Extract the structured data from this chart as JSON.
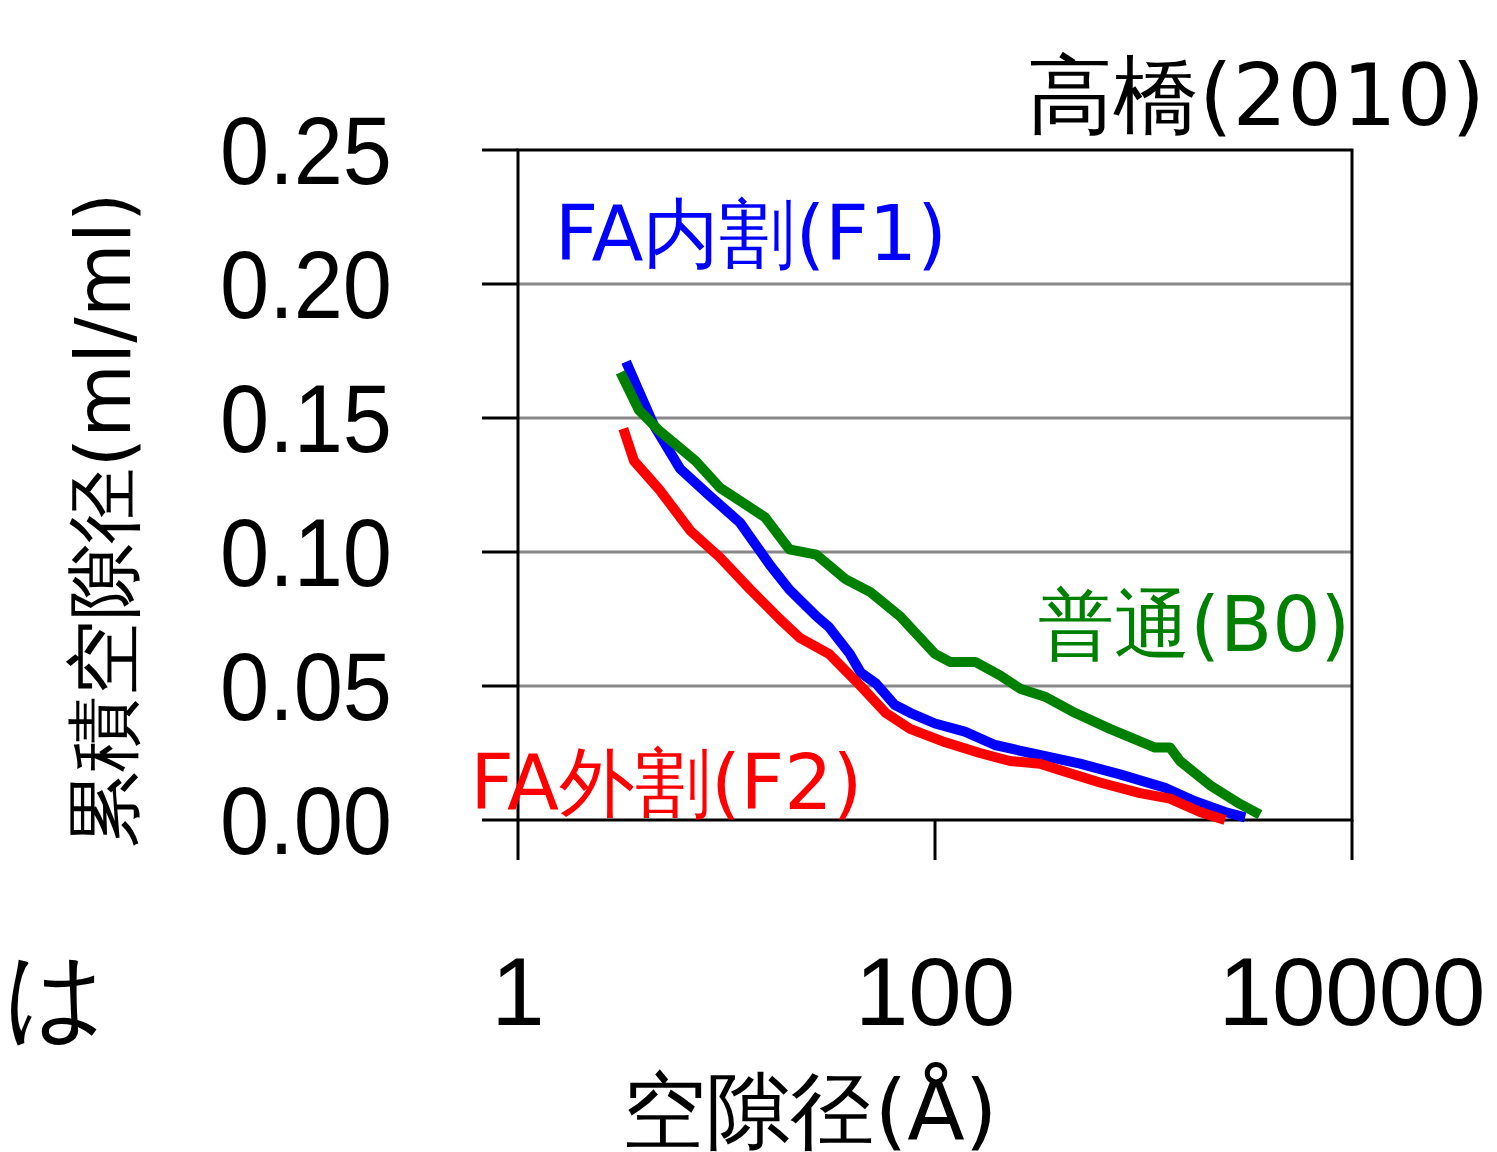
{
  "chart_data": {
    "type": "line",
    "title": "高橋(2010)",
    "xlabel": "空隙径(Å)",
    "ylabel": "累積空隙径(ml/ml)",
    "log": "x",
    "grid": "y",
    "xlim": [
      1,
      10000
    ],
    "xticks": [
      1,
      100,
      10000
    ],
    "ylim": [
      0,
      0.25
    ],
    "yticks": [
      {
        "value": 0,
        "label": "0.00"
      },
      0.05,
      {
        "value": 0.1,
        "label": "0.10"
      },
      0.15,
      {
        "value": 0.2,
        "label": "0.20"
      },
      0.25
    ],
    "annotations": [
      "は"
    ],
    "series": [
      {
        "name": "FA内割(F1)",
        "color": "#0000ff",
        "x": [
          3.3,
          3.8,
          4.5,
          6.0,
          8.3,
          11.6,
          16.2,
          20,
          27,
          31,
          39,
          44,
          52,
          64,
          76,
          100,
          139,
          194,
          286,
          496,
          771,
          1268,
          1766,
          2460,
          3070
        ],
        "values": [
          0.171,
          0.16,
          0.147,
          0.131,
          0.121,
          0.111,
          0.095,
          0.086,
          0.076,
          0.072,
          0.062,
          0.055,
          0.051,
          0.043,
          0.04,
          0.036,
          0.033,
          0.028,
          0.025,
          0.021,
          0.017,
          0.012,
          0.007,
          0.003,
          0.001
        ]
      },
      {
        "name": "普通(B0)",
        "color": "#008000",
        "x": [
          3.1,
          3.8,
          4.8,
          7.1,
          9.3,
          15.3,
          20,
          27,
          37,
          49,
          68,
          100,
          118,
          156,
          205,
          256,
          337,
          469,
          691,
          1135,
          1340,
          1497,
          2084,
          2900,
          3620
        ],
        "values": [
          0.167,
          0.153,
          0.145,
          0.134,
          0.124,
          0.113,
          0.101,
          0.099,
          0.09,
          0.085,
          0.076,
          0.062,
          0.059,
          0.059,
          0.054,
          0.049,
          0.046,
          0.04,
          0.034,
          0.027,
          0.027,
          0.022,
          0.013,
          0.006,
          0.002
        ]
      },
      {
        "name": "FA外割(F2)",
        "color": "#ff0000",
        "x": [
          3.2,
          3.6,
          4.8,
          6.7,
          9.3,
          13,
          18,
          22.5,
          31,
          44,
          58,
          76,
          112,
          164,
          229,
          319,
          421,
          618,
          962,
          1340,
          1866,
          2460
        ],
        "values": [
          0.146,
          0.134,
          0.123,
          0.108,
          0.098,
          0.086,
          0.075,
          0.068,
          0.062,
          0.05,
          0.04,
          0.034,
          0.029,
          0.025,
          0.022,
          0.021,
          0.018,
          0.014,
          0.01,
          0.008,
          0.003,
          0.0
        ]
      }
    ]
  }
}
